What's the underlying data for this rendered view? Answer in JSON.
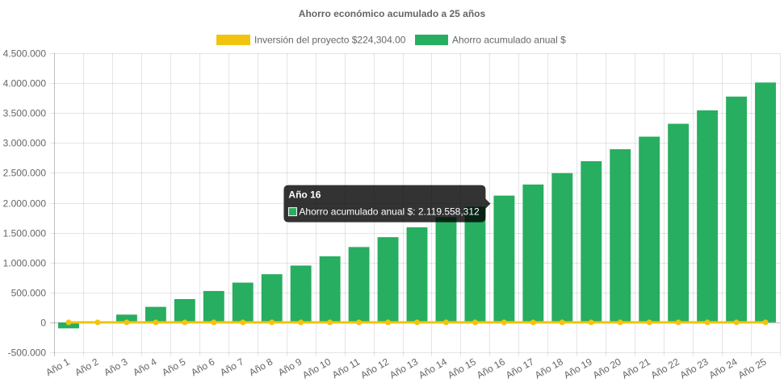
{
  "chart_data": {
    "type": "bar",
    "title": "Ahorro económico acumulado a 25 años",
    "legend_position": "top",
    "grid": true,
    "categories": [
      "Año 1",
      "Año 2",
      "Año 3",
      "Año 4",
      "Año 5",
      "Año 6",
      "Año 7",
      "Año 8",
      "Año 9",
      "Año 10",
      "Año 11",
      "Año 12",
      "Año 13",
      "Año 14",
      "Año 15",
      "Año 16",
      "Año 17",
      "Año 18",
      "Año 19",
      "Año 20",
      "Año 21",
      "Año 22",
      "Año 23",
      "Año 24",
      "Año 25"
    ],
    "ylim": [
      -500000,
      4500000
    ],
    "y_ticks": [
      {
        "value": 4500000,
        "label": "4.500.000"
      },
      {
        "value": 4000000,
        "label": "4.000.000"
      },
      {
        "value": 3500000,
        "label": "3.500.000"
      },
      {
        "value": 3000000,
        "label": "3.000.000"
      },
      {
        "value": 2500000,
        "label": "2.500.000"
      },
      {
        "value": 2000000,
        "label": "2.000.000"
      },
      {
        "value": 1500000,
        "label": "1.500.000"
      },
      {
        "value": 1000000,
        "label": "1.000.000"
      },
      {
        "value": 500000,
        "label": "500.000"
      },
      {
        "value": 0,
        "label": "0"
      },
      {
        "value": -500000,
        "label": "-500.000"
      }
    ],
    "series": [
      {
        "name": "Inversión del proyecto $224,304.00",
        "kind": "line",
        "color": "#f1c40f",
        "values": [
          0,
          0,
          0,
          0,
          0,
          0,
          0,
          0,
          0,
          0,
          0,
          0,
          0,
          0,
          0,
          0,
          0,
          0,
          0,
          0,
          0,
          0,
          0,
          0,
          0
        ]
      },
      {
        "name": "Ahorro acumulado anual $",
        "kind": "bar",
        "color": "#27ae60",
        "values": [
          -100000,
          0,
          130000,
          260000,
          390000,
          525000,
          665000,
          805000,
          950000,
          1105000,
          1260000,
          1425000,
          1590000,
          1760000,
          1935000,
          2119558.312,
          2305000,
          2495000,
          2695000,
          2895000,
          3105000,
          3320000,
          3545000,
          3775000,
          4010000
        ]
      }
    ],
    "tooltip": {
      "title": "Año 16",
      "body": "Ahorro acumulado anual $: 2.119.558,312",
      "category_index": 15
    }
  }
}
